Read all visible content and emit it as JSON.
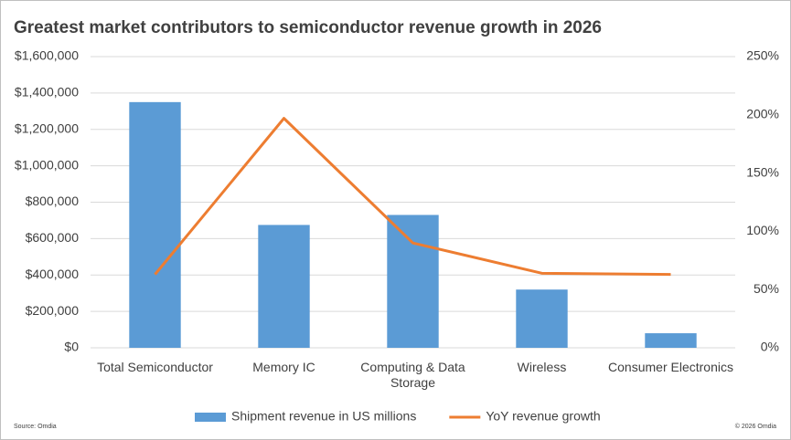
{
  "chart_data": {
    "type": "bar_line",
    "title": "Greatest market contributors to semiconductor revenue growth in 2026",
    "categories": [
      "Total Semiconductor",
      "Memory IC",
      "Computing & Data Storage",
      "Wireless",
      "Consumer Electronics"
    ],
    "series": [
      {
        "name": "Shipment revenue in US millions",
        "type": "bar",
        "color": "#5b9bd5",
        "values": [
          1350000,
          675000,
          730000,
          320000,
          80000
        ]
      },
      {
        "name": "YoY revenue growth",
        "type": "line",
        "color": "#ed7d31",
        "axis": "y2",
        "values": [
          63,
          197,
          90,
          64,
          63
        ]
      }
    ],
    "ylim": [
      0,
      1600000
    ],
    "yticks": [
      {
        "value": 0,
        "label": "$0"
      },
      {
        "value": 200000,
        "label": "$200,000"
      },
      {
        "value": 400000,
        "label": "$400,000"
      },
      {
        "value": 600000,
        "label": "$600,000"
      },
      {
        "value": 800000,
        "label": "$800,000"
      },
      {
        "value": 1000000,
        "label": "$1,000,000"
      },
      {
        "value": 1200000,
        "label": "$1,200,000"
      },
      {
        "value": 1400000,
        "label": "$1,400,000"
      },
      {
        "value": 1600000,
        "label": "$1,600,000"
      }
    ],
    "y2lim": [
      0,
      250
    ],
    "y2ticks": [
      {
        "value": 0,
        "label": "0%"
      },
      {
        "value": 50,
        "label": "50%"
      },
      {
        "value": 100,
        "label": "100%"
      },
      {
        "value": 150,
        "label": "150%"
      },
      {
        "value": 200,
        "label": "200%"
      },
      {
        "value": 250,
        "label": "250%"
      }
    ],
    "grid": true,
    "legend": "bottom",
    "source": "Source: Omdia",
    "copyright": "© 2026 Omdia"
  }
}
